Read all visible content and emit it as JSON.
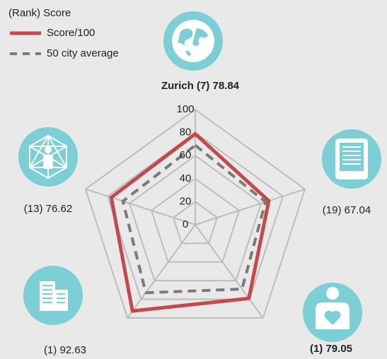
{
  "chart_data": {
    "type": "radar",
    "legend_title": "(Rank) Score",
    "axis_labels": [
      "Zurich (7) 78.84",
      "(19) 67.04",
      "(1) 79.05",
      "(1) 92.63",
      "(13) 76.62"
    ],
    "rlim": [
      0,
      100
    ],
    "rticks": [
      0,
      20,
      40,
      60,
      80,
      100
    ],
    "series": [
      {
        "name": "Score/100",
        "color": "#c4494a",
        "dash": false,
        "values": [
          78.84,
          67.04,
          79.05,
          92.63,
          76.62
        ]
      },
      {
        "name": "50 city average",
        "color": "#7a7a7a",
        "dash": true,
        "values": [
          69,
          64,
          69,
          73,
          66
        ]
      }
    ]
  }
}
